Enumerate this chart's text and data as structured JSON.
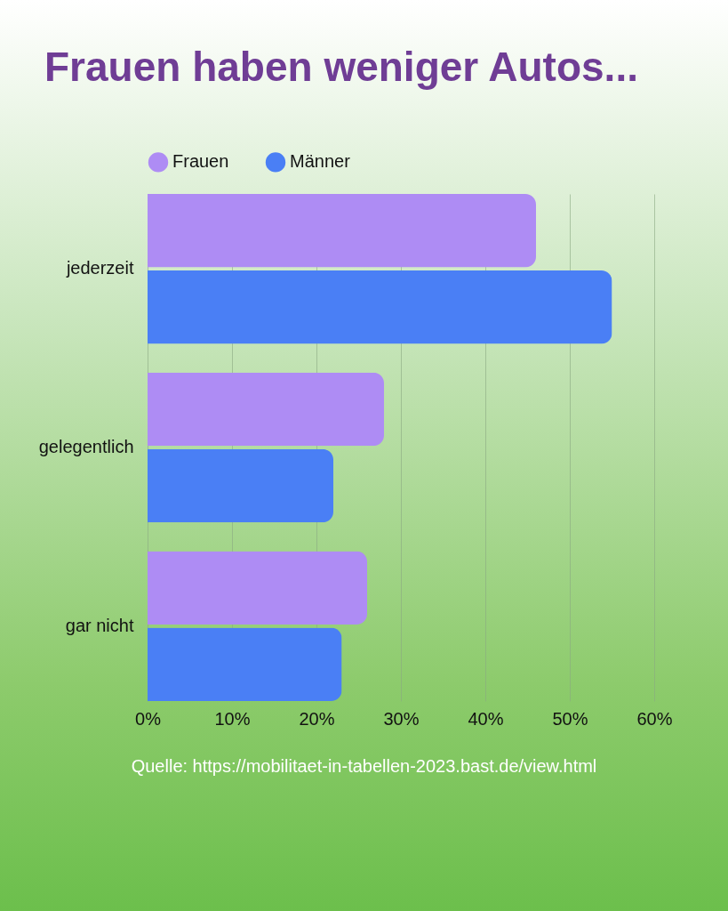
{
  "chart_data": {
    "type": "bar",
    "orientation": "horizontal",
    "title": "Frauen haben weniger Autos...",
    "categories": [
      "jederzeit",
      "gelegentlich",
      "gar nicht"
    ],
    "series": [
      {
        "name": "Frauen",
        "color": "#ae8cf4",
        "values": [
          46,
          28,
          26
        ]
      },
      {
        "name": "Männer",
        "color": "#4a7ff5",
        "values": [
          55,
          22,
          23
        ]
      }
    ],
    "xlim": [
      0,
      60
    ],
    "xticks": [
      {
        "value": 0,
        "label": "0%"
      },
      {
        "value": 10,
        "label": "10%"
      },
      {
        "value": 20,
        "label": "20%"
      },
      {
        "value": 30,
        "label": "30%"
      },
      {
        "value": 40,
        "label": "40%"
      },
      {
        "value": 50,
        "label": "50%"
      },
      {
        "value": 60,
        "label": "60%"
      }
    ],
    "grid": "x",
    "legend": "top",
    "annotations": [
      "Quelle: https://mobilitaet-in-tabellen-2023.bast.de/view.html"
    ]
  }
}
